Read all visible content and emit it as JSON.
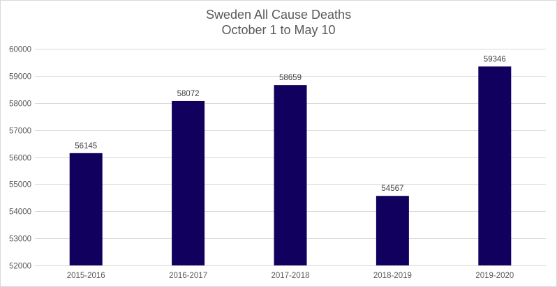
{
  "chart_data": {
    "type": "bar",
    "title_line1": "Sweden All Cause Deaths",
    "title_line2": "October 1 to May 10",
    "categories": [
      "2015-2016",
      "2016-2017",
      "2017-2018",
      "2018-2019",
      "2019-2020"
    ],
    "values": [
      56145,
      58072,
      58659,
      54567,
      59346
    ],
    "data_labels": [
      "56145",
      "58072",
      "58659",
      "54567",
      "59346"
    ],
    "ylim": [
      52000,
      60000
    ],
    "yticks": [
      52000,
      53000,
      54000,
      55000,
      56000,
      57000,
      58000,
      59000,
      60000
    ],
    "ytick_labels": [
      "52000",
      "53000",
      "54000",
      "55000",
      "56000",
      "57000",
      "58000",
      "59000",
      "60000"
    ],
    "grid": true,
    "legend": "none",
    "xlabel": "",
    "ylabel": "",
    "colors": {
      "bar": "#12005e",
      "grid": "#d9d9d9",
      "text": "#595959"
    }
  }
}
